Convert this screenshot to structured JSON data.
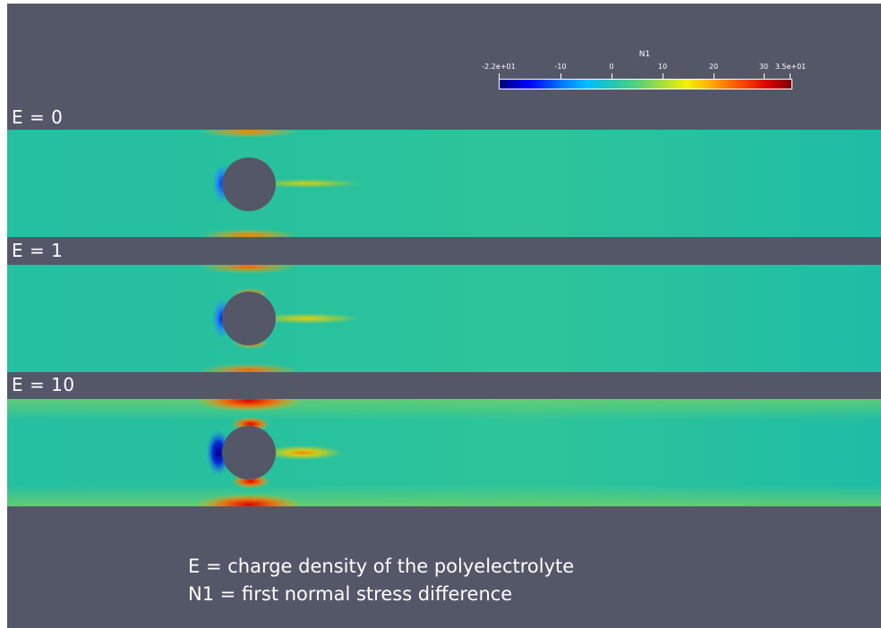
{
  "colorbar": {
    "title": "N1",
    "ticks": [
      "-2.2e+01",
      "-10",
      "0",
      "10",
      "20",
      "30",
      "3.5e+01"
    ],
    "range": [
      -22,
      35
    ],
    "colormap": "rainbow (blue-cyan-green-yellow-red)"
  },
  "panels": [
    {
      "label": "E = 0"
    },
    {
      "label": "E = 1"
    },
    {
      "label": "E = 10"
    }
  ],
  "legend": {
    "line1": "E = charge density of the polyelectrolyte",
    "line2": "N1 = first normal stress difference"
  },
  "colors": {
    "background": "#545768",
    "text": "#ffffff",
    "field_base": "#25bfa2",
    "obstacle": "#545768"
  }
}
